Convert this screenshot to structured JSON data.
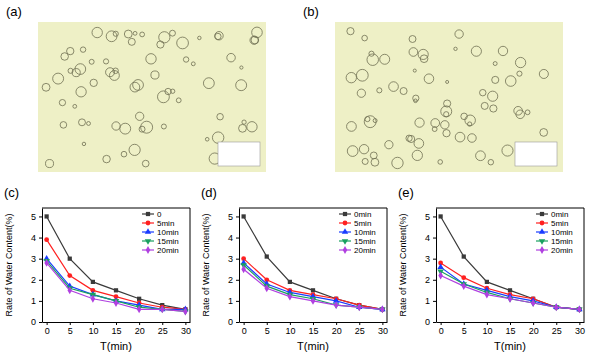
{
  "images": [
    {
      "label": "(a)"
    },
    {
      "label": "(b)"
    }
  ],
  "chart_data": [
    {
      "type": "line",
      "title": "(c)",
      "x_label": "T(min)",
      "y_label": "Rate of Water Content(%)",
      "x": [
        0,
        5,
        10,
        15,
        20,
        25,
        30
      ],
      "xlim": [
        -1,
        31
      ],
      "xticks": [
        0,
        5,
        10,
        15,
        20,
        25,
        30
      ],
      "ylim": [
        0,
        5.4
      ],
      "yticks": [
        0,
        1,
        2,
        3,
        4,
        5
      ],
      "grid": false,
      "legend": "upper right",
      "series": [
        {
          "name": "0",
          "color": "#3a3a3a",
          "marker": "square",
          "values": [
            5.0,
            3.0,
            1.9,
            1.5,
            1.1,
            0.8,
            0.6
          ]
        },
        {
          "name": "5min",
          "color": "#ff2020",
          "marker": "circle",
          "values": [
            3.9,
            2.2,
            1.5,
            1.2,
            0.9,
            0.7,
            0.6
          ]
        },
        {
          "name": "10min",
          "color": "#1a3cff",
          "marker": "triangle-up",
          "values": [
            3.0,
            1.7,
            1.3,
            1.0,
            0.8,
            0.6,
            0.6
          ]
        },
        {
          "name": "15min",
          "color": "#1aa060",
          "marker": "triangle-down",
          "values": [
            2.9,
            1.6,
            1.3,
            1.0,
            0.7,
            0.6,
            0.5
          ]
        },
        {
          "name": "20min",
          "color": "#b040e0",
          "marker": "diamond",
          "values": [
            2.8,
            1.5,
            1.1,
            0.9,
            0.6,
            0.6,
            0.5
          ]
        }
      ]
    },
    {
      "type": "line",
      "title": "(d)",
      "x_label": "T(min)",
      "y_label": "Rate of Water Content(%)",
      "x": [
        0,
        5,
        10,
        15,
        20,
        25,
        30
      ],
      "xlim": [
        -1,
        31
      ],
      "xticks": [
        0,
        5,
        10,
        15,
        20,
        25,
        30
      ],
      "ylim": [
        0,
        5.4
      ],
      "yticks": [
        0,
        1,
        2,
        3,
        4,
        5
      ],
      "grid": false,
      "legend": "upper right",
      "series": [
        {
          "name": "0min",
          "color": "#3a3a3a",
          "marker": "square",
          "values": [
            5.0,
            3.1,
            1.9,
            1.5,
            1.1,
            0.8,
            0.6
          ]
        },
        {
          "name": "5min",
          "color": "#ff2020",
          "marker": "circle",
          "values": [
            3.0,
            2.0,
            1.5,
            1.3,
            1.1,
            0.8,
            0.6
          ]
        },
        {
          "name": "10min",
          "color": "#1a3cff",
          "marker": "triangle-up",
          "values": [
            2.8,
            1.8,
            1.4,
            1.2,
            1.0,
            0.7,
            0.6
          ]
        },
        {
          "name": "15min",
          "color": "#1aa060",
          "marker": "triangle-down",
          "values": [
            2.7,
            1.7,
            1.3,
            1.1,
            0.8,
            0.7,
            0.6
          ]
        },
        {
          "name": "20min",
          "color": "#b040e0",
          "marker": "diamond",
          "values": [
            2.5,
            1.6,
            1.2,
            1.0,
            0.8,
            0.7,
            0.6
          ]
        }
      ]
    },
    {
      "type": "line",
      "title": "(e)",
      "x_label": "T(min)",
      "y_label": "Rate of Water Content(%)",
      "x": [
        0,
        5,
        10,
        15,
        20,
        25,
        30
      ],
      "xlim": [
        -1,
        31
      ],
      "xticks": [
        0,
        5,
        10,
        15,
        20,
        25,
        30
      ],
      "ylim": [
        0,
        5.4
      ],
      "yticks": [
        0,
        1,
        2,
        3,
        4,
        5
      ],
      "grid": false,
      "legend": "upper right",
      "series": [
        {
          "name": "0min",
          "color": "#3a3a3a",
          "marker": "square",
          "values": [
            5.0,
            3.1,
            1.9,
            1.5,
            1.1,
            0.7,
            0.6
          ]
        },
        {
          "name": "5min",
          "color": "#ff2020",
          "marker": "circle",
          "values": [
            2.8,
            2.1,
            1.6,
            1.3,
            1.1,
            0.7,
            0.6
          ]
        },
        {
          "name": "10min",
          "color": "#1a3cff",
          "marker": "triangle-up",
          "values": [
            2.6,
            1.8,
            1.5,
            1.2,
            1.0,
            0.7,
            0.6
          ]
        },
        {
          "name": "15min",
          "color": "#1aa060",
          "marker": "triangle-down",
          "values": [
            2.4,
            1.8,
            1.4,
            1.1,
            0.9,
            0.7,
            0.6
          ]
        },
        {
          "name": "20min",
          "color": "#b040e0",
          "marker": "diamond",
          "values": [
            2.2,
            1.7,
            1.3,
            1.1,
            0.9,
            0.7,
            0.6
          ]
        }
      ]
    }
  ]
}
